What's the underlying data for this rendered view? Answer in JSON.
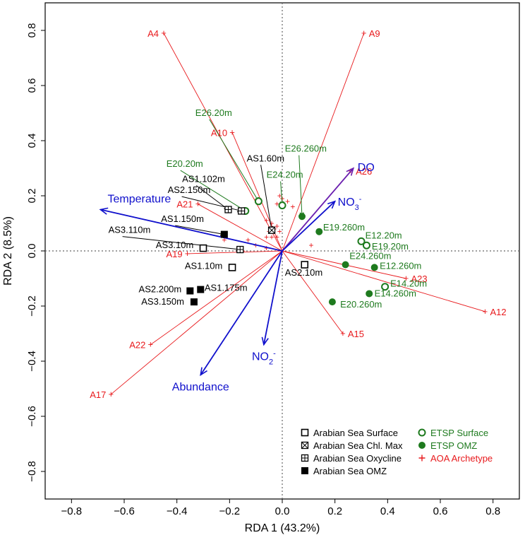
{
  "chart_data": {
    "type": "scatter",
    "subtype": "RDA biplot",
    "xlabel": "RDA 1 (43.2%)",
    "ylabel": "RDA 2 (8.5%)",
    "xlim": [
      -0.9,
      0.9
    ],
    "ylim": [
      -0.9,
      0.9
    ],
    "xticks": [
      -0.8,
      -0.6,
      -0.4,
      -0.2,
      0.0,
      0.2,
      0.4,
      0.6,
      0.8
    ],
    "yticks": [
      -0.8,
      -0.6,
      -0.4,
      -0.2,
      0.0,
      0.2,
      0.4,
      0.6,
      0.8
    ],
    "xtick_labels": [
      "−0.8",
      "−0.6",
      "−0.4",
      "−0.2",
      "0.0",
      "0.2",
      "0.4",
      "0.6",
      "0.8"
    ],
    "ytick_labels": [
      "−0.8",
      "−0.6",
      "−0.4",
      "−0.2",
      "0.0",
      "0.2",
      "0.4",
      "0.6",
      "0.8"
    ],
    "colors": {
      "archetype": "#e8191c",
      "env": "#1010cc",
      "do_arrow": "#6a1fb0",
      "etsp": "#1e7a1e",
      "arabian": "#000000",
      "zero_line": "#666666"
    },
    "env_vectors": [
      {
        "name": "Temperature",
        "label": "Temperature",
        "sup": "",
        "x": -0.69,
        "y": 0.15,
        "color": "env"
      },
      {
        "name": "DO",
        "label": "DO",
        "sup": "",
        "x": 0.27,
        "y": 0.3,
        "color": "do_arrow"
      },
      {
        "name": "NO3-",
        "label": "NO",
        "sub": "3",
        "sup": "-",
        "x": 0.2,
        "y": 0.18,
        "color": "env"
      },
      {
        "name": "NO2-",
        "label": "NO",
        "sub": "2",
        "sup": "-",
        "x": -0.07,
        "y": -0.34,
        "color": "env"
      },
      {
        "name": "Abundance",
        "label": "Abundance",
        "sup": "",
        "x": -0.31,
        "y": -0.45,
        "color": "env"
      }
    ],
    "archetypes_labeled": [
      {
        "label": "A4",
        "x": -0.45,
        "y": 0.79
      },
      {
        "label": "A9",
        "x": 0.31,
        "y": 0.79
      },
      {
        "label": "A10",
        "x": -0.19,
        "y": 0.43
      },
      {
        "label": "A26",
        "x": 0.26,
        "y": 0.29
      },
      {
        "label": "A21",
        "x": -0.32,
        "y": 0.17
      },
      {
        "label": "A19",
        "x": -0.36,
        "y": -0.01
      },
      {
        "label": "A23",
        "x": 0.47,
        "y": -0.1
      },
      {
        "label": "A12",
        "x": 0.77,
        "y": -0.22
      },
      {
        "label": "A15",
        "x": 0.23,
        "y": -0.3
      },
      {
        "label": "A22",
        "x": -0.5,
        "y": -0.34
      },
      {
        "label": "A17",
        "x": -0.65,
        "y": -0.52
      }
    ],
    "archetypes_unlabeled": [
      {
        "x": -0.01,
        "y": 0.2
      },
      {
        "x": 0.0,
        "y": 0.19
      },
      {
        "x": 0.02,
        "y": 0.18
      },
      {
        "x": -0.02,
        "y": 0.17
      },
      {
        "x": 0.04,
        "y": 0.16
      },
      {
        "x": -0.06,
        "y": 0.11
      },
      {
        "x": -0.04,
        "y": 0.1
      },
      {
        "x": -0.02,
        "y": 0.09
      },
      {
        "x": -0.03,
        "y": 0.08
      },
      {
        "x": -0.01,
        "y": 0.07
      },
      {
        "x": -0.05,
        "y": 0.07
      },
      {
        "x": -0.04,
        "y": 0.05
      },
      {
        "x": -0.02,
        "y": 0.05
      },
      {
        "x": -0.06,
        "y": 0.05
      },
      {
        "x": -0.13,
        "y": 0.04
      },
      {
        "x": -0.22,
        "y": 0.04
      },
      {
        "x": -0.1,
        "y": 0.02
      },
      {
        "x": -0.06,
        "y": 0.01
      },
      {
        "x": 0.11,
        "y": 0.02
      },
      {
        "x": -0.15,
        "y": 0.0
      }
    ],
    "samples": [
      {
        "label": "E26.20m",
        "x": -0.09,
        "y": 0.18,
        "shape": "circle-open",
        "group": "etsp",
        "lx": -0.33,
        "ly": 0.49,
        "anchor": "start",
        "lead": true
      },
      {
        "label": "E20.20m",
        "x": -0.14,
        "y": 0.145,
        "shape": "circle-open",
        "group": "etsp",
        "lx": -0.44,
        "ly": 0.305,
        "anchor": "start",
        "lead": true
      },
      {
        "label": "E24.20m",
        "x": 0.0,
        "y": 0.165,
        "shape": "circle-open",
        "group": "etsp",
        "lx": -0.06,
        "ly": 0.265,
        "anchor": "start",
        "lead": true
      },
      {
        "label": "E26.260m",
        "x": 0.075,
        "y": 0.125,
        "shape": "circle-filled",
        "group": "etsp",
        "lx": 0.01,
        "ly": 0.36,
        "anchor": "start",
        "lead": true
      },
      {
        "label": "E19.260m",
        "x": 0.14,
        "y": 0.07,
        "shape": "circle-filled",
        "group": "etsp",
        "lx": 0.155,
        "ly": 0.075,
        "anchor": "start",
        "lead": false
      },
      {
        "label": "E12.20m",
        "x": 0.3,
        "y": 0.035,
        "shape": "circle-open",
        "group": "etsp",
        "lx": 0.315,
        "ly": 0.045,
        "anchor": "start",
        "lead": false
      },
      {
        "label": "E19.20m",
        "x": 0.32,
        "y": 0.02,
        "shape": "circle-open",
        "group": "etsp",
        "lx": 0.34,
        "ly": 0.005,
        "anchor": "start",
        "lead": false
      },
      {
        "label": "E24.260m",
        "x": 0.24,
        "y": -0.05,
        "shape": "circle-filled",
        "group": "etsp",
        "lx": 0.255,
        "ly": -0.03,
        "anchor": "start",
        "lead": false
      },
      {
        "label": "E12.260m",
        "x": 0.35,
        "y": -0.06,
        "shape": "circle-filled",
        "group": "etsp",
        "lx": 0.37,
        "ly": -0.065,
        "anchor": "start",
        "lead": false
      },
      {
        "label": "E14.20m",
        "x": 0.39,
        "y": -0.13,
        "shape": "circle-open",
        "group": "etsp",
        "lx": 0.41,
        "ly": -0.13,
        "anchor": "start",
        "lead": false
      },
      {
        "label": "E14.260m",
        "x": 0.33,
        "y": -0.155,
        "shape": "circle-filled",
        "group": "etsp",
        "lx": 0.35,
        "ly": -0.165,
        "anchor": "start",
        "lead": false
      },
      {
        "label": "E20.260m",
        "x": 0.19,
        "y": -0.185,
        "shape": "circle-filled",
        "group": "etsp",
        "lx": 0.22,
        "ly": -0.205,
        "anchor": "start",
        "lead": false
      },
      {
        "label": "AS1.60m",
        "x": -0.04,
        "y": 0.075,
        "shape": "square-x",
        "group": "arabian",
        "lx": -0.135,
        "ly": 0.325,
        "anchor": "start",
        "lead": true
      },
      {
        "label": "AS1.102m",
        "x": -0.205,
        "y": 0.15,
        "shape": "square-plus",
        "group": "arabian",
        "lx": -0.38,
        "ly": 0.25,
        "anchor": "start",
        "lead": true
      },
      {
        "label": "AS2.150m",
        "x": -0.155,
        "y": 0.145,
        "shape": "square-plus",
        "group": "arabian",
        "lx": -0.435,
        "ly": 0.21,
        "anchor": "start",
        "lead": true
      },
      {
        "label": "AS1.150m",
        "x": -0.22,
        "y": 0.06,
        "shape": "square-filled",
        "group": "arabian",
        "lx": -0.46,
        "ly": 0.105,
        "anchor": "start",
        "lead": true
      },
      {
        "label": "AS3.110m",
        "x": -0.16,
        "y": 0.005,
        "shape": "square-plus",
        "group": "arabian",
        "lx": -0.66,
        "ly": 0.065,
        "anchor": "start",
        "lead": true
      },
      {
        "label": "AS3.10m",
        "x": -0.3,
        "y": 0.01,
        "shape": "square-open",
        "group": "arabian",
        "lx": -0.48,
        "ly": 0.01,
        "anchor": "start",
        "lead": false
      },
      {
        "label": "AS1.10m",
        "x": -0.19,
        "y": -0.06,
        "shape": "square-open",
        "group": "arabian",
        "lx": -0.37,
        "ly": -0.065,
        "anchor": "start",
        "lead": false
      },
      {
        "label": "AS2.10m",
        "x": 0.085,
        "y": -0.05,
        "shape": "square-open",
        "group": "arabian",
        "lx": 0.01,
        "ly": -0.09,
        "anchor": "start",
        "lead": false
      },
      {
        "label": "AS2.200m",
        "x": -0.35,
        "y": -0.145,
        "shape": "square-filled",
        "group": "arabian",
        "lx": -0.545,
        "ly": -0.15,
        "anchor": "start",
        "lead": false
      },
      {
        "label": "AS1.175m",
        "x": -0.31,
        "y": -0.14,
        "shape": "square-filled",
        "group": "arabian",
        "lx": -0.295,
        "ly": -0.145,
        "anchor": "start",
        "lead": false
      },
      {
        "label": "AS3.150m",
        "x": -0.335,
        "y": -0.185,
        "shape": "square-filled",
        "group": "arabian",
        "lx": -0.535,
        "ly": -0.195,
        "anchor": "start",
        "lead": false
      }
    ],
    "legend": [
      {
        "label": "Arabian Sea Surface",
        "shape": "square-open",
        "group": "arabian"
      },
      {
        "label": "Arabian Sea Chl. Max",
        "shape": "square-x",
        "group": "arabian"
      },
      {
        "label": "Arabian Sea Oxycline",
        "shape": "square-plus",
        "group": "arabian"
      },
      {
        "label": "Arabian Sea OMZ",
        "shape": "square-filled",
        "group": "arabian"
      },
      {
        "label": "ETSP Surface",
        "shape": "circle-open",
        "group": "etsp"
      },
      {
        "label": "ETSP OMZ",
        "shape": "circle-filled",
        "group": "etsp"
      },
      {
        "label": "AOA Archetype",
        "shape": "plus",
        "group": "archetype"
      }
    ]
  }
}
